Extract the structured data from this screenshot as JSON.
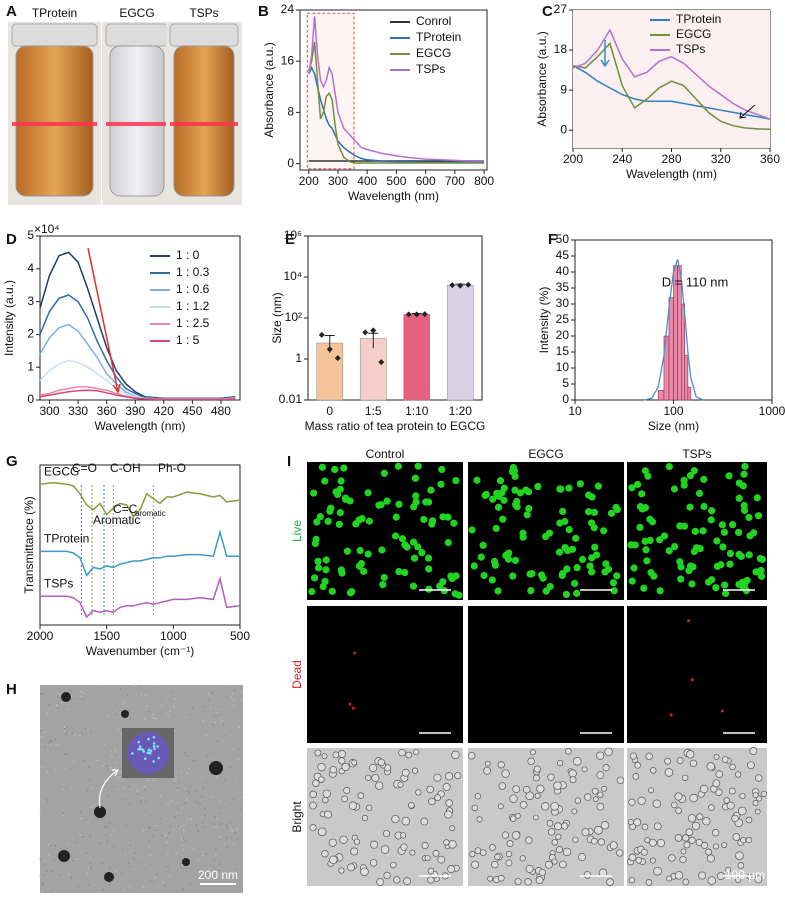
{
  "photo": {
    "panel": "A",
    "labels": [
      "TProtein",
      "EGCG",
      "TSPs"
    ]
  },
  "chart_data": [
    {
      "panel": "B",
      "type": "line",
      "xlabel": "Wavelength (nm)",
      "ylabel": "Absorbance (a.u.)",
      "x": [
        200,
        210,
        220,
        230,
        240,
        250,
        260,
        270,
        280,
        290,
        300,
        320,
        340,
        360,
        380,
        400,
        450,
        500,
        550,
        600,
        650,
        700,
        750,
        800
      ],
      "xlim": [
        170,
        810
      ],
      "xticks": [
        200,
        300,
        400,
        500,
        600,
        700,
        800
      ],
      "ylim": [
        -1,
        24
      ],
      "yticks": [
        0,
        8,
        16,
        24
      ],
      "series": [
        {
          "name": "Conrol",
          "color": "#333333",
          "values": [
            0.4,
            0.4,
            0.4,
            0.4,
            0.4,
            0.4,
            0.4,
            0.4,
            0.4,
            0.4,
            0.4,
            0.4,
            0.4,
            0.4,
            0.4,
            0.4,
            0.4,
            0.4,
            0.4,
            0.4,
            0.4,
            0.4,
            0.4,
            0.4
          ]
        },
        {
          "name": "TProtein",
          "color": "#2f6fb5",
          "values": [
            14,
            15,
            14,
            12,
            10,
            8.5,
            7,
            6,
            5.5,
            4.5,
            3.5,
            2.5,
            1.8,
            1.2,
            0.8,
            0.6,
            0.4,
            0.3,
            0.3,
            0.2,
            0.2,
            0.2,
            0.2,
            0.2
          ]
        },
        {
          "name": "EGCG",
          "color": "#6f8f3a",
          "values": [
            14.5,
            16,
            19,
            13,
            7,
            8,
            10.5,
            11,
            10,
            6,
            3,
            1,
            0.3,
            0.1,
            0.1,
            0.1,
            0.1,
            0.1,
            0.1,
            0.1,
            0.1,
            0.1,
            0.1,
            0.1
          ]
        },
        {
          "name": "TSPs",
          "color": "#b46fd0",
          "values": [
            14,
            17,
            23,
            17,
            13,
            12,
            13,
            15,
            14,
            11,
            8,
            5.5,
            4.5,
            3.5,
            2.5,
            2.2,
            1.6,
            1.2,
            0.9,
            0.7,
            0.6,
            0.5,
            0.4,
            0.4
          ]
        }
      ]
    },
    {
      "panel": "C",
      "type": "line",
      "xlabel": "Wavelength (nm)",
      "ylabel": "Absorbance (a.u.)",
      "x": [
        200,
        210,
        220,
        230,
        240,
        250,
        260,
        270,
        280,
        290,
        300,
        310,
        320,
        330,
        340,
        350,
        360
      ],
      "xlim": [
        200,
        360
      ],
      "xticks": [
        200,
        240,
        280,
        320,
        360
      ],
      "ylim": [
        -4,
        27
      ],
      "yticks": [
        0,
        9,
        18,
        27
      ],
      "series": [
        {
          "name": "TProtein",
          "color": "#2f7fc0",
          "values": [
            14.5,
            13,
            11,
            9.5,
            8,
            7,
            6.5,
            6.5,
            6.5,
            6,
            5.5,
            5,
            4.5,
            4,
            3.5,
            3,
            2.5
          ]
        },
        {
          "name": "EGCG",
          "color": "#6f8f3a",
          "values": [
            14.5,
            14,
            16.5,
            19.5,
            10,
            5,
            7,
            9.5,
            11,
            10,
            7,
            4,
            2,
            1,
            0.5,
            0.3,
            0.2
          ]
        },
        {
          "name": "TSPs",
          "color": "#b46fd0",
          "values": [
            14,
            15,
            18,
            22.5,
            16,
            12,
            13,
            15.5,
            16.5,
            15,
            12.5,
            10,
            8,
            6,
            4.5,
            3.5,
            2.5
          ]
        }
      ]
    },
    {
      "panel": "D",
      "type": "line",
      "xlabel": "Wavelength (nm)",
      "ylabel": "Intensity (a.u.)",
      "y_scale_label": "×10⁴",
      "x": [
        290,
        300,
        310,
        320,
        330,
        340,
        350,
        360,
        370,
        380,
        390,
        400,
        420,
        440,
        460,
        480,
        495
      ],
      "xlim": [
        290,
        500
      ],
      "xticks": [
        300,
        330,
        360,
        390,
        420,
        450,
        480
      ],
      "ylim": [
        0,
        5
      ],
      "yticks": [
        0,
        1,
        2,
        3,
        4,
        5
      ],
      "series": [
        {
          "name": "1 : 0",
          "color": "#1f3c6b",
          "values": [
            2.8,
            3.8,
            4.4,
            4.5,
            4.2,
            3.4,
            2.5,
            1.6,
            0.9,
            0.5,
            0.25,
            0.1,
            0.05,
            0.05,
            0.05,
            0.05,
            0.1
          ]
        },
        {
          "name": "1 : 0.3",
          "color": "#2e6ca4",
          "values": [
            2,
            2.7,
            3.1,
            3.2,
            3,
            2.5,
            1.8,
            1.2,
            0.7,
            0.35,
            0.2,
            0.08,
            0.04,
            0.04,
            0.04,
            0.04,
            0.08
          ]
        },
        {
          "name": "1 : 0.6",
          "color": "#7fb1dc",
          "values": [
            1.4,
            1.9,
            2.2,
            2.3,
            2.1,
            1.7,
            1.3,
            0.8,
            0.5,
            0.25,
            0.12,
            0.05,
            0.03,
            0.03,
            0.03,
            0.03,
            0.06
          ]
        },
        {
          "name": "1 : 1.2",
          "color": "#c9dff0",
          "values": [
            0.6,
            0.9,
            1.1,
            1.2,
            1.15,
            1,
            0.8,
            0.6,
            0.35,
            0.2,
            0.1,
            0.05,
            0.03,
            0.03,
            0.03,
            0.03,
            0.05
          ]
        },
        {
          "name": "1 : 2.5",
          "color": "#e88aa0",
          "values": [
            0.15,
            0.2,
            0.3,
            0.35,
            0.4,
            0.4,
            0.35,
            0.3,
            0.2,
            0.12,
            0.07,
            0.04,
            0.02,
            0.02,
            0.02,
            0.02,
            0.03
          ]
        },
        {
          "name": "1 : 5",
          "color": "#d8457a",
          "values": [
            0.1,
            0.15,
            0.2,
            0.25,
            0.28,
            0.3,
            0.28,
            0.22,
            0.15,
            0.1,
            0.05,
            0.03,
            0.02,
            0.02,
            0.02,
            0.02,
            0.03
          ]
        }
      ]
    },
    {
      "panel": "E",
      "type": "bar",
      "xlabel": "Mass ratio of tea protein to EGCG",
      "ylabel": "Size (nm)",
      "log_y": true,
      "categories": [
        "0",
        "1:5",
        "1:10",
        "1:20"
      ],
      "values": [
        6,
        10,
        150,
        4000
      ],
      "errors": [
        8,
        8,
        15,
        500
      ],
      "points": [
        [
          15,
          3,
          1.1
        ],
        [
          20,
          25,
          0.7
        ],
        [
          150,
          150,
          155
        ],
        [
          4000,
          3800,
          4200
        ]
      ],
      "colors": [
        "#f6c49a",
        "#f5cfc7",
        "#e8607f",
        "#d9d2e6"
      ],
      "ylim": [
        0.01,
        1000000
      ],
      "yticks": [
        0.01,
        1,
        {
          "value": 100,
          "label": "10²"
        },
        {
          "value": 10000,
          "label": "10⁴"
        },
        {
          "value": 1000000,
          "label": "10⁶"
        }
      ]
    },
    {
      "panel": "F",
      "type": "histogram",
      "xlabel": "Size (nm)",
      "ylabel": "Intensity (%)",
      "log_x": true,
      "annotation": "D = 110 nm",
      "color": "#e98aa8",
      "bins": [
        70,
        80,
        90,
        100,
        110,
        120,
        130,
        140,
        150
      ],
      "counts": [
        3,
        20,
        32,
        42,
        42,
        30,
        14,
        4
      ],
      "fit": {
        "color": "#4a90c8",
        "x": [
          50,
          60,
          70,
          80,
          90,
          100,
          110,
          120,
          130,
          140,
          150,
          170,
          200
        ],
        "values": [
          0,
          0.5,
          4,
          14,
          29,
          40,
          44,
          38,
          27,
          15,
          7,
          1,
          0
        ]
      },
      "xlim": [
        10,
        1000
      ],
      "xticks": [
        10,
        100,
        1000
      ],
      "ylim": [
        0,
        50
      ],
      "yticks": [
        0,
        5,
        10,
        15,
        20,
        25,
        30,
        35,
        40,
        45,
        50
      ]
    },
    {
      "panel": "G",
      "type": "line",
      "xlabel": "Wavenumber (cm⁻¹)",
      "ylabel": "Transmittance (%)",
      "series_labels": true,
      "x": [
        2000,
        1900,
        1800,
        1750,
        1700,
        1650,
        1600,
        1550,
        1500,
        1450,
        1400,
        1350,
        1300,
        1250,
        1200,
        1150,
        1100,
        1050,
        1000,
        900,
        800,
        700,
        650,
        600,
        500
      ],
      "xlim": [
        2000,
        500
      ],
      "xticks": [
        2000,
        1500,
        1000,
        500
      ],
      "ylim": [
        0,
        10
      ],
      "reference_lines": [
        {
          "x": 1690,
          "color": "#d03ed6"
        },
        {
          "x": 1610,
          "color": "#8a9a3b"
        },
        {
          "x": 1520,
          "color": "#2d8fd6"
        },
        {
          "x": 1450,
          "color": "#e08a2c"
        },
        {
          "x": 1150,
          "color": "#a0b040"
        }
      ],
      "annotations": [
        {
          "text": "C=O",
          "color": "#d03ed6"
        },
        {
          "text": "C-OH",
          "color": "#e08a2c"
        },
        {
          "text": "Ph-O",
          "color": "#7f9a2e"
        },
        {
          "text": "C=C",
          "color": "#2d8fd6"
        },
        {
          "text": "aromatic",
          "color": "#2d8fd6"
        },
        {
          "text": "Aromatic",
          "color": "#8a9a3b"
        }
      ],
      "series": [
        {
          "name": "EGCG",
          "color": "#8a9a3b",
          "values": [
            8.8,
            8.9,
            8.8,
            8.7,
            8.2,
            7.5,
            7.2,
            7.6,
            6.9,
            7.3,
            7.6,
            7.5,
            6.8,
            7.2,
            8.2,
            7.9,
            7.6,
            8,
            8,
            8.3,
            8.2,
            8,
            8.1,
            7.7,
            7.8
          ]
        },
        {
          "name": "TProtein",
          "color": "#3a9ac9",
          "values": [
            4.6,
            4.6,
            4.6,
            4.5,
            4.2,
            3.1,
            3.6,
            3.5,
            3.7,
            3.6,
            3.8,
            3.9,
            4,
            4,
            4.1,
            4.2,
            4.2,
            4.3,
            4.3,
            4.4,
            4.4,
            4.3,
            5.8,
            4.3,
            4.3
          ]
        },
        {
          "name": "TSPs",
          "color": "#b25dbf",
          "values": [
            1.8,
            1.8,
            1.8,
            1.7,
            1.4,
            0.5,
            0.9,
            0.8,
            0.9,
            0.8,
            1.1,
            1.2,
            1.2,
            1.3,
            1.4,
            1.3,
            1.4,
            1.5,
            1.6,
            1.6,
            1.7,
            1.6,
            2.9,
            1.1,
            1.2
          ]
        }
      ]
    }
  ],
  "tem": {
    "panel": "H",
    "scale": "200 nm"
  },
  "micrographs": {
    "panel": "I",
    "columns": [
      "Control",
      "EGCG",
      "TSPs"
    ],
    "rows": [
      "Live",
      "Dead",
      "Bright"
    ],
    "row_colors": [
      "#22b14c",
      "#e02020",
      "#111111"
    ],
    "scale": "100 µm"
  }
}
